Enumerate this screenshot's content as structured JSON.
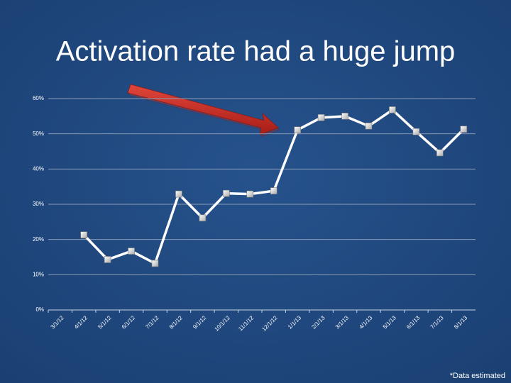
{
  "chart_data": {
    "type": "line",
    "title": "Activation rate had a huge jump",
    "footnote": "*Data estimated",
    "categories": [
      "3/1/12",
      "4/1/12",
      "5/1/12",
      "6/1/12",
      "7/1/12",
      "8/1/12",
      "9/1/12",
      "10/1/12",
      "11/1/12",
      "12/1/12",
      "1/1/13",
      "2/1/13",
      "3/1/13",
      "4/1/13",
      "5/1/13",
      "6/1/13",
      "7/1/13",
      "8/1/13"
    ],
    "values": [
      null,
      21.3,
      14.3,
      16.7,
      13.2,
      32.9,
      26.1,
      33.1,
      32.9,
      33.8,
      51.1,
      54.6,
      55.0,
      52.2,
      56.8,
      50.6,
      44.6,
      51.3
    ],
    "color": "#ffffff",
    "ylim": [
      0,
      60
    ],
    "yticks": [
      {
        "value": 0,
        "label": "0%"
      },
      {
        "value": 10,
        "label": "10%"
      },
      {
        "value": 20,
        "label": "20%"
      },
      {
        "value": 30,
        "label": "30%"
      },
      {
        "value": 40,
        "label": "40%"
      },
      {
        "value": 50,
        "label": "50%"
      },
      {
        "value": 60,
        "label": "60%"
      }
    ],
    "grid": true
  }
}
